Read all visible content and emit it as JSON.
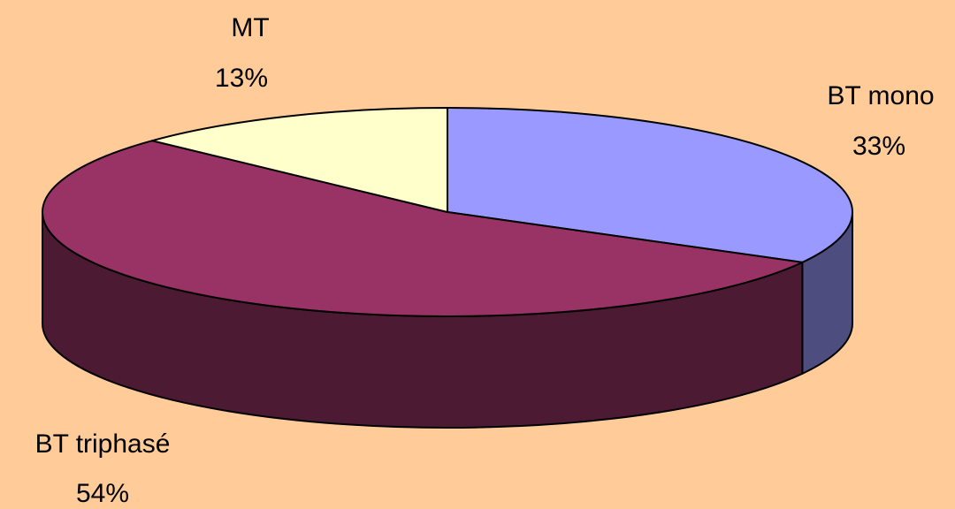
{
  "chart_data": {
    "type": "pie",
    "style": "3d-exploded-none",
    "title": "",
    "legend": "none",
    "slices": [
      {
        "name": "BT mono",
        "value": 33,
        "percent_label": "33%",
        "color": "#9999FF",
        "side_color": "#4D4D80"
      },
      {
        "name": "BT triphasé",
        "value": 54,
        "percent_label": "54%",
        "color": "#993366",
        "side_color": "#4D1A33"
      },
      {
        "name": "MT",
        "value": 13,
        "percent_label": "13%",
        "color": "#FFFFCC",
        "side_color": "#808066"
      }
    ]
  },
  "background_color": "#FFCC99"
}
